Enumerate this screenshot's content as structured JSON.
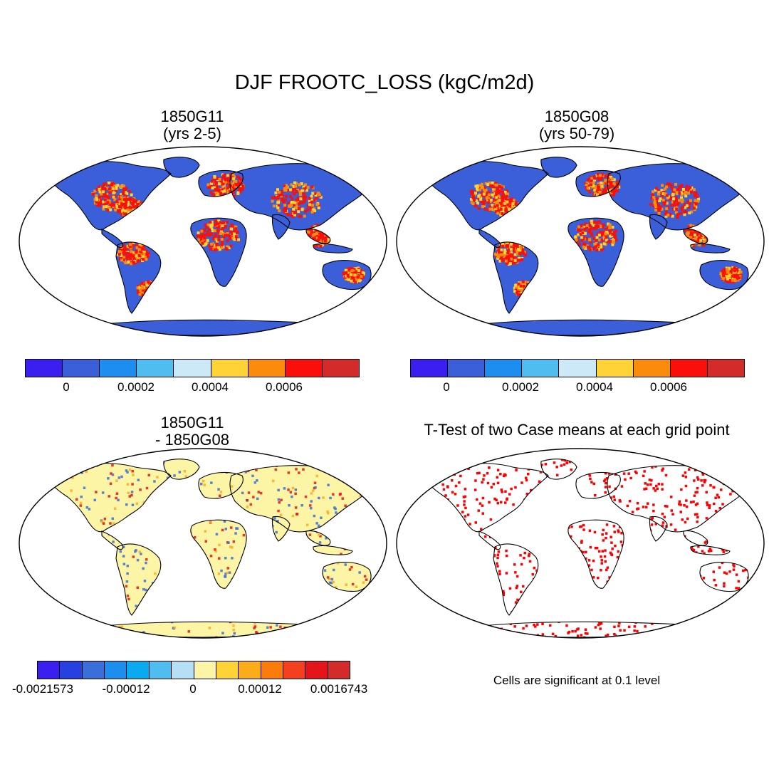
{
  "title": "DJF FROOTC_LOSS (kgC/m2d)",
  "panels": {
    "top_left": {
      "title": "1850G11",
      "subtitle": "(yrs 2-5)"
    },
    "top_right": {
      "title": "1850G08",
      "subtitle": "(yrs 50-79)"
    },
    "bottom_left": {
      "title": "1850G11",
      "subtitle": "- 1850G08"
    },
    "bottom_right": {
      "title": "T-Test of two Case means at each grid point",
      "note": "Cells are significant at 0.1 level"
    }
  },
  "colorbar_main": {
    "colors": [
      "#3a1ff0",
      "#3a5fd9",
      "#1c8ef0",
      "#4fbdef",
      "#cce9f7",
      "#fdd335",
      "#fb8c0b",
      "#fb0f0b",
      "#d32a2a"
    ],
    "labels": [
      "0",
      "0.0002",
      "0.0004",
      "0.0006"
    ]
  },
  "colorbar_diff": {
    "colors": [
      "#3a1ff0",
      "#2740e0",
      "#3a6ed9",
      "#1c8ef0",
      "#0aaaf0",
      "#4fbdef",
      "#b5dff5",
      "#fdf5a6",
      "#fdd335",
      "#fbac1b",
      "#fb7c0b",
      "#f54020",
      "#e3141a",
      "#d32a2a"
    ],
    "labels": [
      "-0.0021573",
      "-0.00012",
      "0",
      "0.00012",
      "0.0016743"
    ]
  },
  "map_colors": {
    "ocean": "#ffffff",
    "land_main": "#3a5fd9",
    "hot_1": "#fb0f0b",
    "hot_2": "#fb8c0b",
    "hot_3": "#fdd335",
    "land_diff": "#fdf5a6",
    "diff_blue": "#3a6ed9",
    "diff_red": "#e3141a",
    "sig": "#ff0000"
  }
}
